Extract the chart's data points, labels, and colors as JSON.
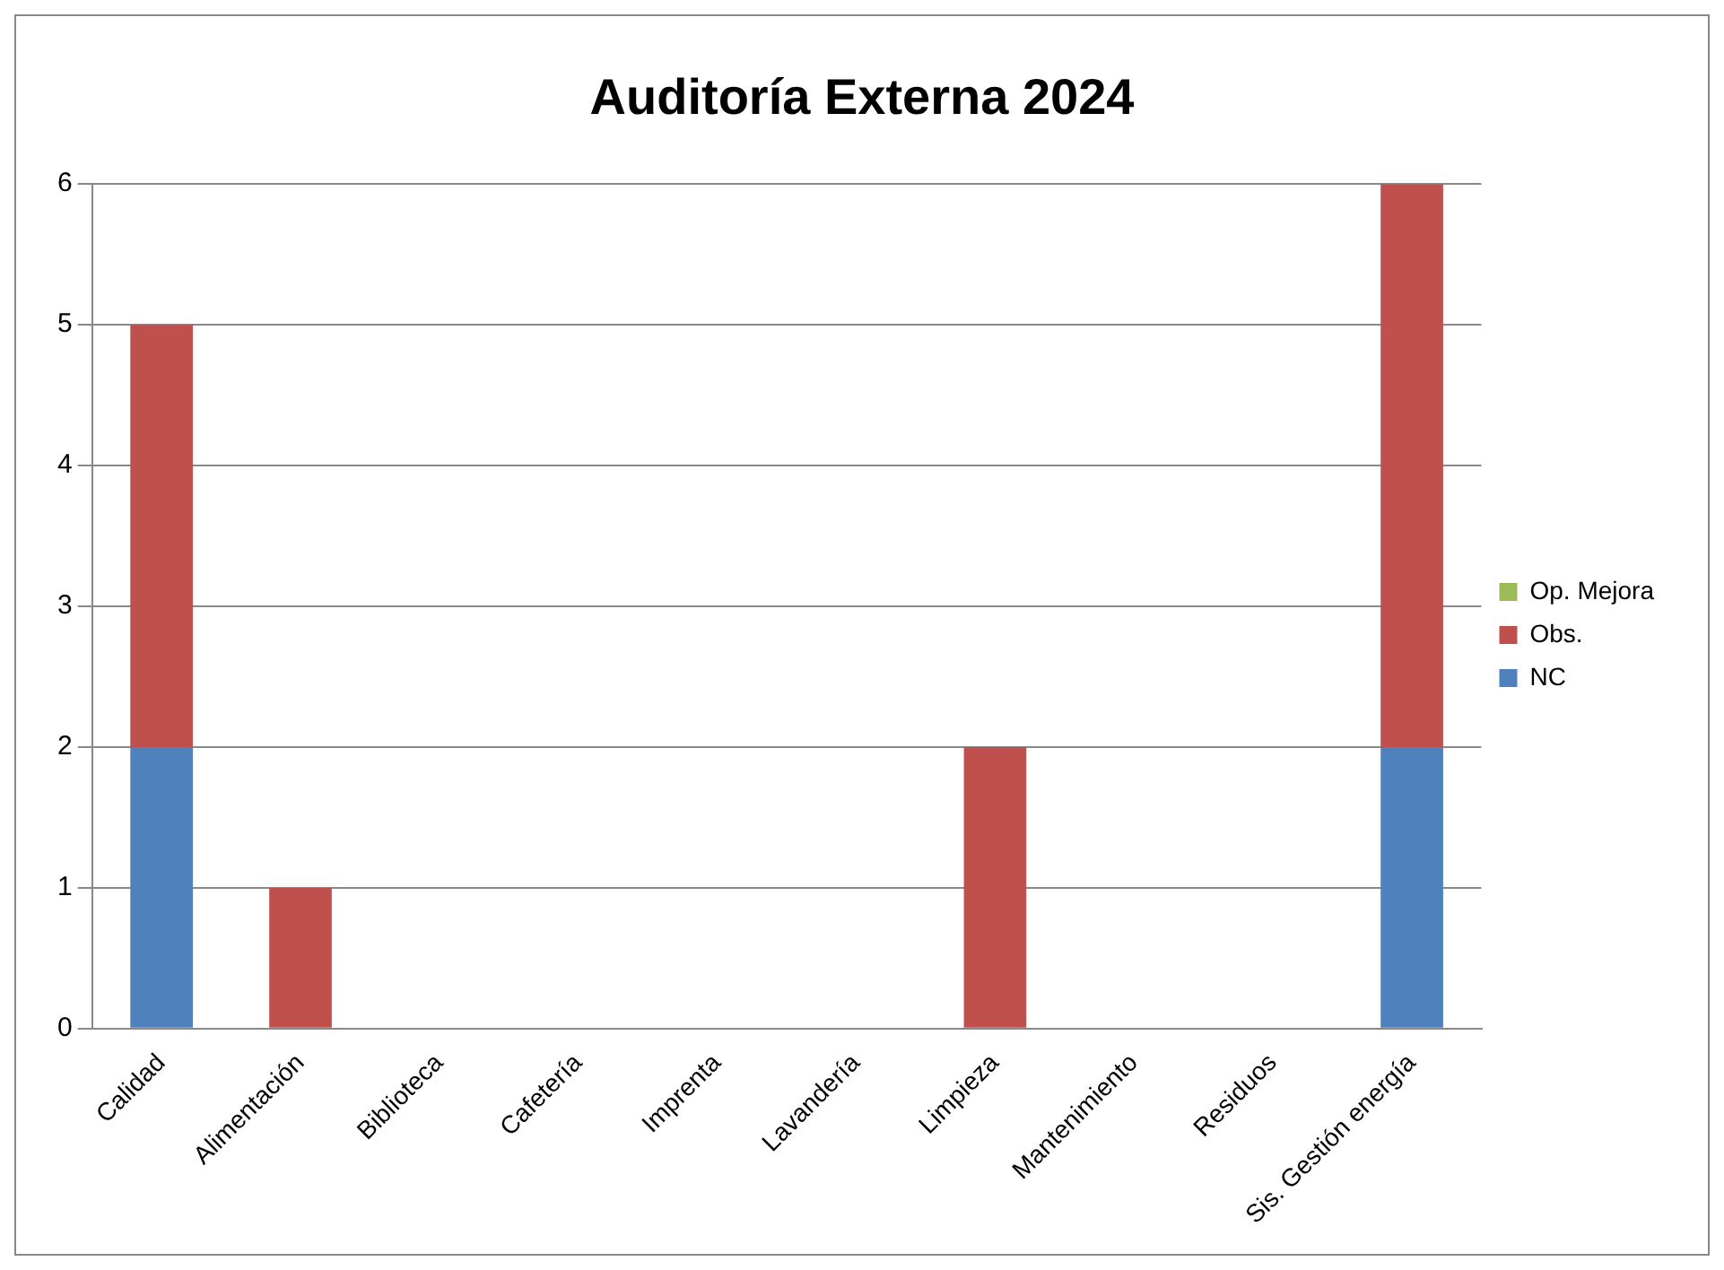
{
  "chart_data": {
    "type": "bar",
    "title": "Auditoría Externa 2024",
    "categories": [
      "Calidad",
      "Alimentación",
      "Biblioteca",
      "Cafetería",
      "Imprenta",
      "Lavandería",
      "Limpieza",
      "Mantenimiento",
      "Residuos",
      "Sis. Gestión energía"
    ],
    "series": [
      {
        "name": "NC",
        "color": "#4f81bd",
        "values": [
          2,
          0,
          0,
          0,
          0,
          0,
          0,
          0,
          0,
          2
        ]
      },
      {
        "name": "Obs.",
        "color": "#c0504d",
        "values": [
          3,
          1,
          0,
          0,
          0,
          0,
          2,
          0,
          0,
          4
        ]
      },
      {
        "name": "Op. Mejora",
        "color": "#9bbb59",
        "values": [
          0,
          0,
          0,
          0,
          0,
          0,
          0,
          0,
          0,
          0
        ]
      }
    ],
    "stacked": true,
    "ylim": [
      0,
      6
    ],
    "yticks": [
      0,
      1,
      2,
      3,
      4,
      5,
      6
    ],
    "grid": "y",
    "legend": "right"
  }
}
